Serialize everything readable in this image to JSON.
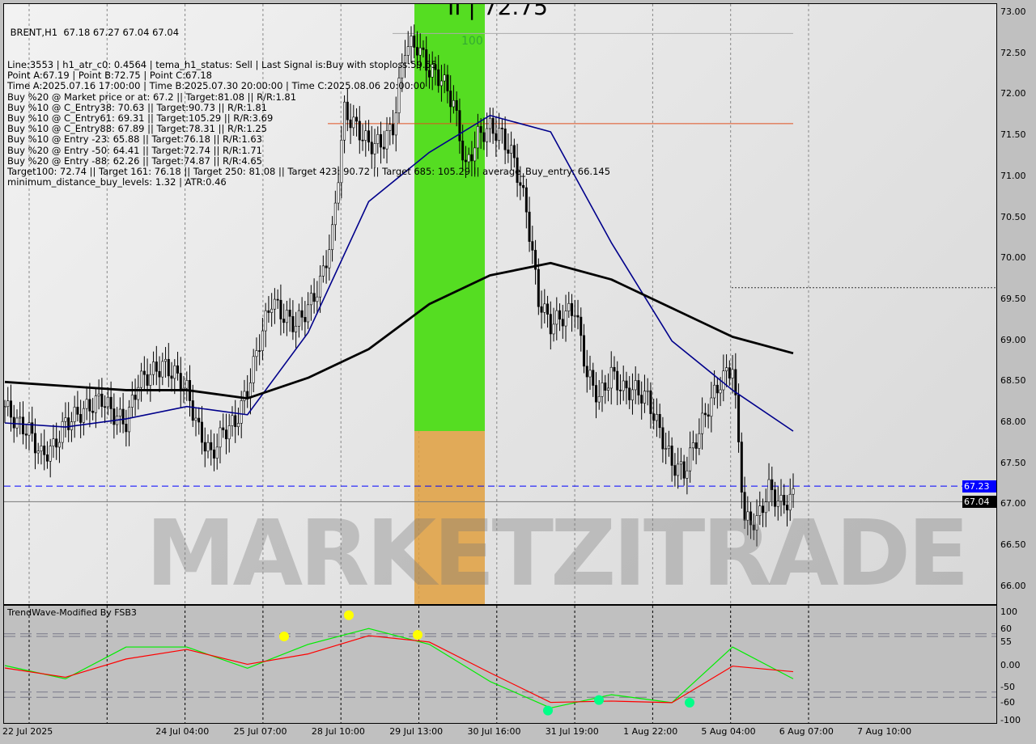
{
  "header": {
    "symbol_line": " BRENT,H1  67.18 67.27 67.04 67.04",
    "lines": [
      "Line:3553 | h1_atr_c0: 0.4564 | tema_h1_status: Sell | Last Signal is:Buy with stoploss:59.55",
      "Point A:67.19 | Point B:72.75 | Point C:67.18",
      "Time A:2025.07.16 17:00:00 | Time B:2025.07.30 20:00:00 | Time C:2025.08.06 20:00:00",
      "Buy %20 @ Market price or at: 67.2 || Target:81.08 || R/R:1.81",
      "Buy %10 @ C_Entry38: 70.63 || Target:90.73 || R/R:1.81",
      "Buy %10 @ C_Entry61: 69.31 || Target:105.29 || R/R:3.69",
      "Buy %10 @ C_Entry88: 67.89 || Target:78.31 || R/R:1.25",
      "Buy %10 @ Entry -23: 65.88 || Target:76.18 || R/R:1.63",
      "Buy %20 @ Entry -50: 64.41 || Target:72.74 || R/R:1.71",
      "Buy %20 @ Entry -88: 62.26 || Target:74.87 || R/R:4.65",
      "Target100: 72.74 || Target 161: 76.18 || Target 250: 81.08 || Target 423: 90.72 || Target 685: 105.29 || average_Buy_entry: 66.145",
      "minimum_distance_buy_levels: 1.32 | ATR:0.46"
    ]
  },
  "point_b_label": "II | 72.75",
  "zone_label": "100",
  "watermark": "MARKETZITRADE",
  "oscillator_title": "TrendWave-Modified By FSB3",
  "price_tags": {
    "bid": "67.23",
    "last": "67.04"
  },
  "colors": {
    "bid_line": "#0000ff",
    "zone_green": "#55dd22",
    "zone_orange": "#e0a040",
    "ma_black": "#000000",
    "ma_blue": "#00008b",
    "osc_green": "#00ee00",
    "osc_red": "#ff0000",
    "bull": "#00aa00",
    "bear": "#cc0000"
  },
  "chart_data": [
    {
      "type": "candlestick",
      "title": "BRENT,H1",
      "ylim": [
        66.0,
        73.0
      ],
      "y_ticks": [
        "73.00",
        "72.50",
        "72.00",
        "71.50",
        "71.00",
        "70.50",
        "70.00",
        "69.50",
        "69.00",
        "68.50",
        "68.00",
        "67.50",
        "67.00",
        "66.50",
        "66.00"
      ],
      "x_ticks": [
        "22 Jul 2025",
        "24 Jul 04:00",
        "25 Jul 07:00",
        "28 Jul 10:00",
        "29 Jul 13:00",
        "30 Jul 16:00",
        "31 Jul 19:00",
        "1 Aug 22:00",
        "5 Aug 04:00",
        "6 Aug 07:00",
        "7 Aug 10:00"
      ],
      "closes": [
        68.2,
        68.0,
        67.9,
        67.6,
        67.7,
        68.0,
        68.1,
        68.2,
        68.3,
        68.1,
        68.0,
        68.5,
        68.6,
        68.7,
        68.6,
        68.4,
        67.9,
        67.6,
        67.9,
        68.0,
        68.4,
        69.0,
        69.5,
        69.3,
        69.2,
        69.4,
        69.7,
        70.3,
        71.8,
        71.6,
        71.4,
        71.4,
        71.6,
        72.6,
        72.6,
        72.3,
        72.2,
        71.9,
        71.1,
        71.5,
        71.6,
        71.5,
        71.2,
        70.6,
        69.5,
        69.2,
        69.3,
        69.4,
        68.6,
        68.3,
        68.6,
        68.4,
        68.4,
        68.3,
        67.9,
        67.5,
        67.4,
        67.8,
        68.2,
        68.5,
        68.7,
        66.8,
        66.8,
        67.2,
        67.0,
        67.1
      ],
      "ma_black": [
        68.5,
        68.45,
        68.4,
        68.4,
        68.3,
        68.55,
        68.9,
        69.45,
        69.8,
        69.95,
        69.75,
        69.4,
        69.05,
        68.85
      ],
      "ma_blue": [
        68.0,
        67.95,
        68.05,
        68.2,
        68.1,
        69.1,
        70.7,
        71.3,
        71.75,
        71.55,
        70.2,
        69.0,
        68.4,
        67.9
      ],
      "hlines": [
        67.23,
        67.04,
        69.65,
        72.75,
        71.65
      ]
    },
    {
      "type": "line",
      "title": "TrendWave-Modified By FSB3",
      "ylim": [
        -100,
        100
      ],
      "y_ticks": [
        "100",
        "60",
        "55",
        "0.00",
        "-50",
        "-60",
        "-100"
      ],
      "levels": [
        60,
        55,
        -50,
        -60
      ],
      "series": [
        {
          "values": [
            0,
            -25,
            35,
            35,
            -5,
            40,
            70,
            40,
            -30,
            -80,
            -55,
            -70,
            35,
            -25
          ]
        }
      ]
    }
  ]
}
